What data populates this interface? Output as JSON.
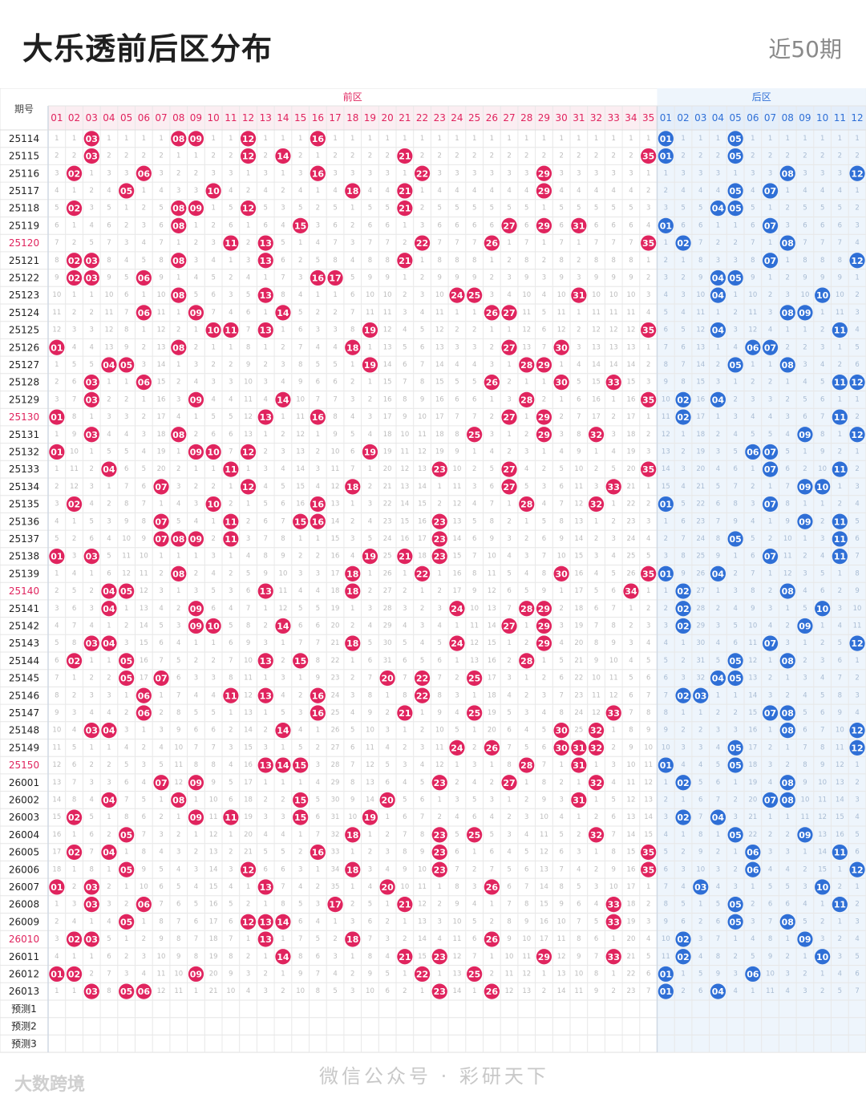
{
  "header": {
    "title": "大乐透前后区分布",
    "period_label": "近50期"
  },
  "table": {
    "issue_header": "期号",
    "front_zone_label": "前区",
    "back_zone_label": "后区",
    "front_numbers": [
      "01",
      "02",
      "03",
      "04",
      "05",
      "06",
      "07",
      "08",
      "09",
      "10",
      "11",
      "12",
      "13",
      "14",
      "15",
      "16",
      "17",
      "18",
      "19",
      "20",
      "21",
      "22",
      "23",
      "24",
      "25",
      "26",
      "27",
      "28",
      "29",
      "30",
      "31",
      "32",
      "33",
      "34",
      "35"
    ],
    "back_numbers": [
      "01",
      "02",
      "03",
      "04",
      "05",
      "06",
      "07",
      "08",
      "09",
      "10",
      "11",
      "12"
    ],
    "highlight_issue_color": "#e0245e",
    "front_ball_color": "#e0245e",
    "back_ball_color": "#2f6fd6",
    "draws": [
      {
        "issue": "25114",
        "front": [
          3,
          8,
          9,
          12,
          16
        ],
        "back": [
          1,
          5
        ]
      },
      {
        "issue": "25115",
        "front": [
          3,
          12,
          14,
          21,
          35
        ],
        "back": [
          1,
          5
        ]
      },
      {
        "issue": "25116",
        "front": [
          2,
          6,
          16,
          22,
          29
        ],
        "back": [
          8,
          12
        ]
      },
      {
        "issue": "25117",
        "front": [
          5,
          10,
          18,
          21,
          29
        ],
        "back": [
          5,
          7
        ]
      },
      {
        "issue": "25118",
        "front": [
          2,
          8,
          9,
          12,
          21
        ],
        "back": [
          4,
          5
        ]
      },
      {
        "issue": "25119",
        "front": [
          8,
          15,
          27,
          29,
          31
        ],
        "back": [
          1,
          7
        ]
      },
      {
        "issue": "25120",
        "front": [
          11,
          13,
          22,
          26,
          35
        ],
        "back": [
          2,
          8
        ]
      },
      {
        "issue": "25121",
        "front": [
          2,
          3,
          8,
          13,
          21
        ],
        "back": [
          7,
          12
        ]
      },
      {
        "issue": "25122",
        "front": [
          2,
          3,
          6,
          16,
          17
        ],
        "back": [
          4,
          5
        ]
      },
      {
        "issue": "25123",
        "front": [
          8,
          13,
          24,
          25,
          31
        ],
        "back": [
          4,
          10
        ]
      },
      {
        "issue": "25124",
        "front": [
          6,
          9,
          14,
          26,
          27
        ],
        "back": [
          8,
          9
        ]
      },
      {
        "issue": "25125",
        "front": [
          10,
          11,
          13,
          19,
          35
        ],
        "back": [
          4,
          11
        ]
      },
      {
        "issue": "25126",
        "front": [
          1,
          8,
          18,
          27,
          30
        ],
        "back": [
          6,
          7
        ]
      },
      {
        "issue": "25127",
        "front": [
          4,
          5,
          19,
          28,
          29
        ],
        "back": [
          5,
          8
        ]
      },
      {
        "issue": "25128",
        "front": [
          3,
          6,
          26,
          30,
          33
        ],
        "back": [
          11,
          12
        ]
      },
      {
        "issue": "25129",
        "front": [
          3,
          9,
          14,
          28,
          35
        ],
        "back": [
          2,
          4
        ]
      },
      {
        "issue": "25130",
        "front": [
          1,
          13,
          16,
          27,
          29
        ],
        "back": [
          2,
          11
        ]
      },
      {
        "issue": "25131",
        "front": [
          3,
          8,
          25,
          29,
          32
        ],
        "back": [
          9,
          12
        ]
      },
      {
        "issue": "25132",
        "front": [
          1,
          9,
          10,
          12,
          19
        ],
        "back": [
          6,
          7
        ]
      },
      {
        "issue": "25133",
        "front": [
          4,
          11,
          23,
          27,
          35
        ],
        "back": [
          7,
          11
        ]
      },
      {
        "issue": "25134",
        "front": [
          7,
          12,
          18,
          27,
          33
        ],
        "back": [
          9,
          10
        ]
      },
      {
        "issue": "25135",
        "front": [
          2,
          10,
          16,
          28,
          32
        ],
        "back": [
          1,
          7
        ]
      },
      {
        "issue": "25136",
        "front": [
          7,
          11,
          15,
          16,
          23
        ],
        "back": [
          9,
          11
        ]
      },
      {
        "issue": "25137",
        "front": [
          7,
          8,
          9,
          11,
          23
        ],
        "back": [
          5,
          11
        ]
      },
      {
        "issue": "25138",
        "front": [
          1,
          3,
          19,
          21,
          23
        ],
        "back": [
          7,
          11
        ]
      },
      {
        "issue": "25139",
        "front": [
          8,
          18,
          22,
          30,
          35
        ],
        "back": [
          1,
          4
        ]
      },
      {
        "issue": "25140",
        "front": [
          4,
          5,
          13,
          18,
          34
        ],
        "back": [
          2,
          8
        ]
      },
      {
        "issue": "25141",
        "front": [
          4,
          9,
          24,
          28,
          29
        ],
        "back": [
          2,
          10
        ]
      },
      {
        "issue": "25142",
        "front": [
          9,
          10,
          14,
          27,
          29
        ],
        "back": [
          2,
          9
        ]
      },
      {
        "issue": "25143",
        "front": [
          3,
          4,
          18,
          24,
          29
        ],
        "back": [
          7,
          12
        ]
      },
      {
        "issue": "25144",
        "front": [
          2,
          5,
          13,
          15,
          28
        ],
        "back": [
          5,
          8
        ]
      },
      {
        "issue": "25145",
        "front": [
          5,
          7,
          20,
          22,
          25
        ],
        "back": [
          4,
          5
        ]
      },
      {
        "issue": "25146",
        "front": [
          6,
          11,
          13,
          16,
          22
        ],
        "back": [
          2,
          3
        ]
      },
      {
        "issue": "25147",
        "front": [
          6,
          16,
          21,
          25,
          33
        ],
        "back": [
          7,
          8
        ]
      },
      {
        "issue": "25148",
        "front": [
          3,
          4,
          14,
          30,
          32
        ],
        "back": [
          8,
          12
        ]
      },
      {
        "issue": "25149",
        "front": [
          24,
          26,
          30,
          31,
          32
        ],
        "back": [
          5,
          12
        ]
      },
      {
        "issue": "25150",
        "front": [
          13,
          14,
          15,
          28,
          31
        ],
        "back": [
          1,
          5
        ]
      },
      {
        "issue": "26001",
        "front": [
          7,
          9,
          23,
          27,
          32
        ],
        "back": [
          2,
          8
        ]
      },
      {
        "issue": "26002",
        "front": [
          4,
          8,
          15,
          20,
          31
        ],
        "back": [
          7,
          8
        ]
      },
      {
        "issue": "26003",
        "front": [
          2,
          9,
          11,
          15,
          19
        ],
        "back": [
          2,
          4
        ]
      },
      {
        "issue": "26004",
        "front": [
          5,
          18,
          23,
          25,
          32
        ],
        "back": [
          5,
          9
        ]
      },
      {
        "issue": "26005",
        "front": [
          2,
          4,
          16,
          23,
          35
        ],
        "back": [
          6,
          11
        ]
      },
      {
        "issue": "26006",
        "front": [
          5,
          12,
          18,
          23,
          35
        ],
        "back": [
          6,
          12
        ]
      },
      {
        "issue": "26007",
        "front": [
          1,
          3,
          13,
          20,
          26
        ],
        "back": [
          3,
          10
        ]
      },
      {
        "issue": "26008",
        "front": [
          3,
          6,
          17,
          21,
          33
        ],
        "back": [
          5,
          11
        ]
      },
      {
        "issue": "26009",
        "front": [
          5,
          12,
          13,
          14,
          33
        ],
        "back": [
          5,
          8
        ]
      },
      {
        "issue": "26010",
        "front": [
          2,
          3,
          13,
          18,
          26
        ],
        "back": [
          2,
          9
        ]
      },
      {
        "issue": "26011",
        "front": [
          14,
          21,
          23,
          29,
          33
        ],
        "back": [
          2,
          10
        ]
      },
      {
        "issue": "26012",
        "front": [
          1,
          2,
          9,
          22,
          25
        ],
        "back": [
          1,
          6
        ]
      },
      {
        "issue": "26013",
        "front": [
          3,
          5,
          6,
          23,
          26
        ],
        "back": [
          1,
          4
        ]
      }
    ],
    "highlighted_issues": [
      "25120",
      "25130",
      "25140",
      "25150",
      "26010"
    ],
    "prediction_rows": [
      "预测1",
      "预测2",
      "预测3"
    ]
  },
  "footer": {
    "source": "微信公众号 · 彩研天下",
    "watermark": "大数跨境"
  }
}
